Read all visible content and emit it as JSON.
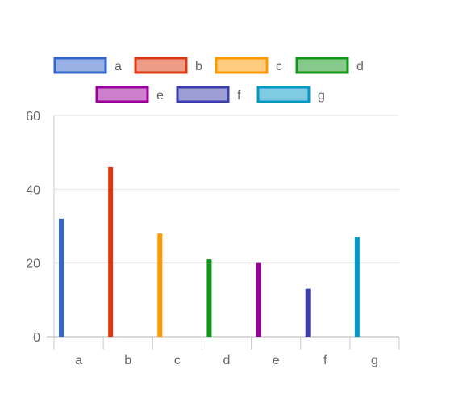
{
  "chart_data": {
    "type": "bar",
    "categories": [
      "a",
      "b",
      "c",
      "d",
      "e",
      "f",
      "g"
    ],
    "values": [
      32,
      46,
      28,
      21,
      20,
      13,
      27
    ],
    "ylim": [
      0,
      60
    ],
    "yticks": [
      0,
      20,
      40,
      60
    ],
    "grid": true,
    "legend_position": "top",
    "legend": [
      {
        "label": "a",
        "color": "#3366cc"
      },
      {
        "label": "b",
        "color": "#dc3912"
      },
      {
        "label": "c",
        "color": "#ff9900"
      },
      {
        "label": "d",
        "color": "#109618"
      },
      {
        "label": "e",
        "color": "#990099"
      },
      {
        "label": "f",
        "color": "#3b3eac"
      },
      {
        "label": "g",
        "color": "#0099c6"
      }
    ]
  }
}
